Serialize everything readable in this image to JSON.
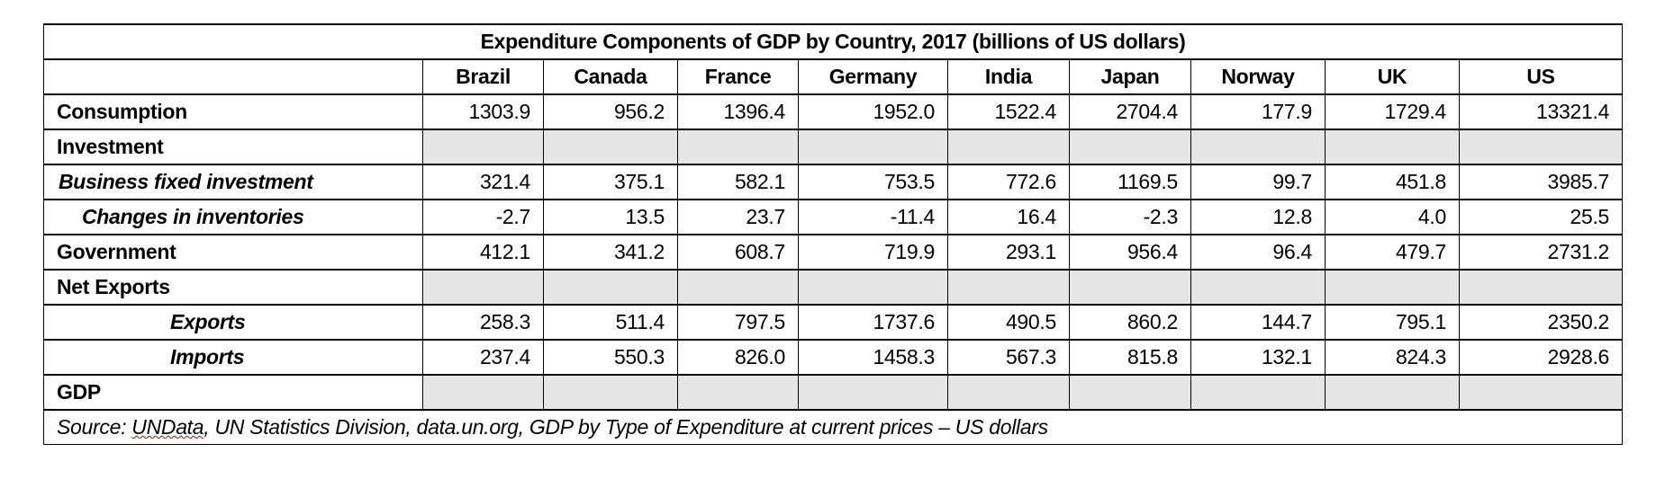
{
  "title": "Expenditure Components of GDP by Country, 2017 (billions of US dollars)",
  "columns": [
    "Brazil",
    "Canada",
    "France",
    "Germany",
    "India",
    "Japan",
    "Norway",
    "UK",
    "US"
  ],
  "rows": [
    {
      "label": "Consumption",
      "style": "bold",
      "values": [
        "1303.9",
        "956.2",
        "1396.4",
        "1952.0",
        "1522.4",
        "2704.4",
        "177.9",
        "1729.4",
        "13321.4"
      ]
    },
    {
      "label": "Investment",
      "style": "bold",
      "values": null
    },
    {
      "label": "Business fixed investment",
      "style": "italic",
      "indent": 0,
      "values": [
        "321.4",
        "375.1",
        "582.1",
        "753.5",
        "772.6",
        "1169.5",
        "99.7",
        "451.8",
        "3985.7"
      ]
    },
    {
      "label": "Changes in inventories",
      "style": "italic",
      "indent": 1,
      "values": [
        "-2.7",
        "13.5",
        "23.7",
        "-11.4",
        "16.4",
        "-2.3",
        "12.8",
        "4.0",
        "25.5"
      ]
    },
    {
      "label": "Government",
      "style": "bold",
      "values": [
        "412.1",
        "341.2",
        "608.7",
        "719.9",
        "293.1",
        "956.4",
        "96.4",
        "479.7",
        "2731.2"
      ]
    },
    {
      "label": "Net Exports",
      "style": "bold",
      "values": null
    },
    {
      "label": "Exports",
      "style": "italic",
      "indent": 2,
      "values": [
        "258.3",
        "511.4",
        "797.5",
        "1737.6",
        "490.5",
        "860.2",
        "144.7",
        "795.1",
        "2350.2"
      ]
    },
    {
      "label": "Imports",
      "style": "italic",
      "indent": 2,
      "values": [
        "237.4",
        "550.3",
        "826.0",
        "1458.3",
        "567.3",
        "815.8",
        "132.1",
        "824.3",
        "2928.6"
      ]
    },
    {
      "label": "GDP",
      "style": "bold",
      "values": null
    }
  ],
  "source": {
    "prefix": "Source: ",
    "flagged": "UNData",
    "rest": ", UN Statistics Division, data.un.org, GDP by Type of Expenditure at current prices – US dollars"
  },
  "colors": {
    "shade": "#e6e6e6",
    "border": "#000000"
  }
}
